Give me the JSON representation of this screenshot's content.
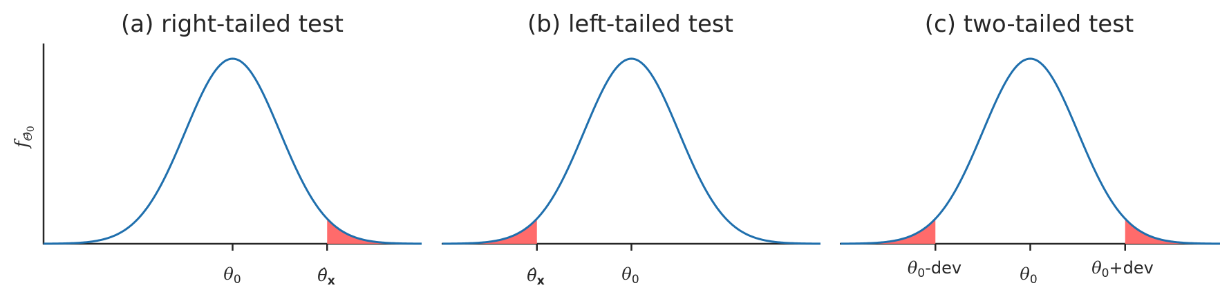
{
  "chart_data": [
    {
      "type": "line",
      "title": "(a) right-tailed test",
      "ylabel": "f_Θ̂₀",
      "xticks": [
        {
          "x": 0,
          "label": "θ0"
        },
        {
          "x": 1,
          "label": "θ̂x"
        }
      ],
      "xlim": [
        -2,
        2
      ],
      "curve": {
        "name": "",
        "mean": 0,
        "sd": 0.5
      },
      "shaded_regions": [
        [
          1,
          2
        ]
      ]
    },
    {
      "type": "line",
      "title": "(b) left-tailed test",
      "ylabel": "",
      "xticks": [
        {
          "x": -1,
          "label": "θ̂x"
        },
        {
          "x": 0,
          "label": "θ0"
        }
      ],
      "xlim": [
        -2,
        2
      ],
      "curve": {
        "name": "",
        "mean": 0,
        "sd": 0.5
      },
      "shaded_regions": [
        [
          -2,
          -1
        ]
      ]
    },
    {
      "type": "line",
      "title": "(c) two-tailed test",
      "ylabel": "",
      "xticks": [
        {
          "x": -1,
          "label": "θ0-dev"
        },
        {
          "x": 0,
          "label": "θ0"
        },
        {
          "x": 1,
          "label": "θ0+dev"
        }
      ],
      "xlim": [
        -2,
        2
      ],
      "curve": {
        "name": "",
        "mean": 0,
        "sd": 0.5
      },
      "shaded_regions": [
        [
          -2,
          -1
        ],
        [
          1,
          2
        ]
      ]
    }
  ],
  "colors": {
    "curve": "#1f6fad",
    "tail": "#ff6b6b",
    "axis": "#262626"
  }
}
